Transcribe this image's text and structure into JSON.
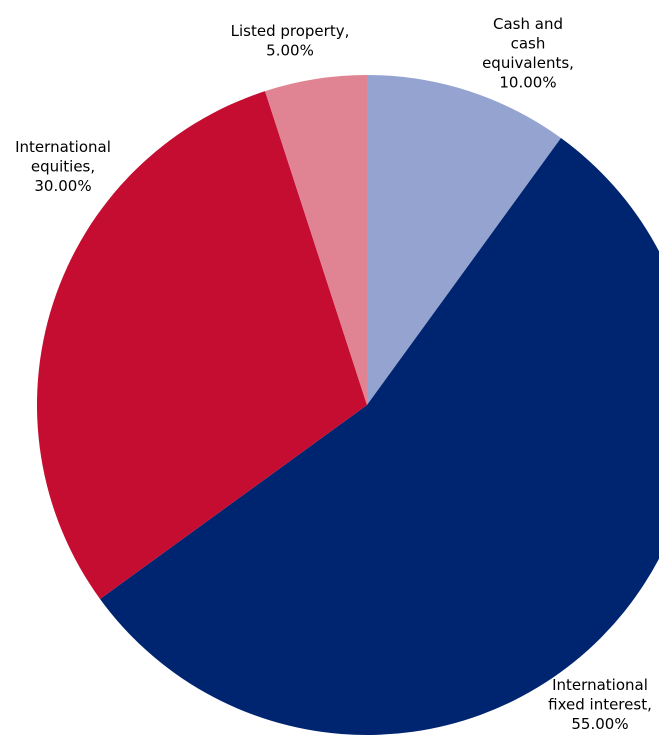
{
  "chart_data": {
    "type": "pie",
    "title": "",
    "start_angle_deg": 0,
    "direction": "clockwise",
    "categories": [
      "Cash and cash equivalents",
      "International fixed interest",
      "International equities",
      "Listed property"
    ],
    "values": [
      10.0,
      55.0,
      30.0,
      5.0
    ],
    "unit": "%",
    "colors": [
      "#95a3d1",
      "#002570",
      "#c50d31",
      "#e08494"
    ],
    "labels": [
      [
        "Cash and",
        "cash",
        "equivalents,",
        "10.00%"
      ],
      [
        "International",
        "fixed interest,",
        "55.00%"
      ],
      [
        "International",
        "equities,",
        "30.00%"
      ],
      [
        "Listed property,",
        "5.00%"
      ]
    ]
  }
}
